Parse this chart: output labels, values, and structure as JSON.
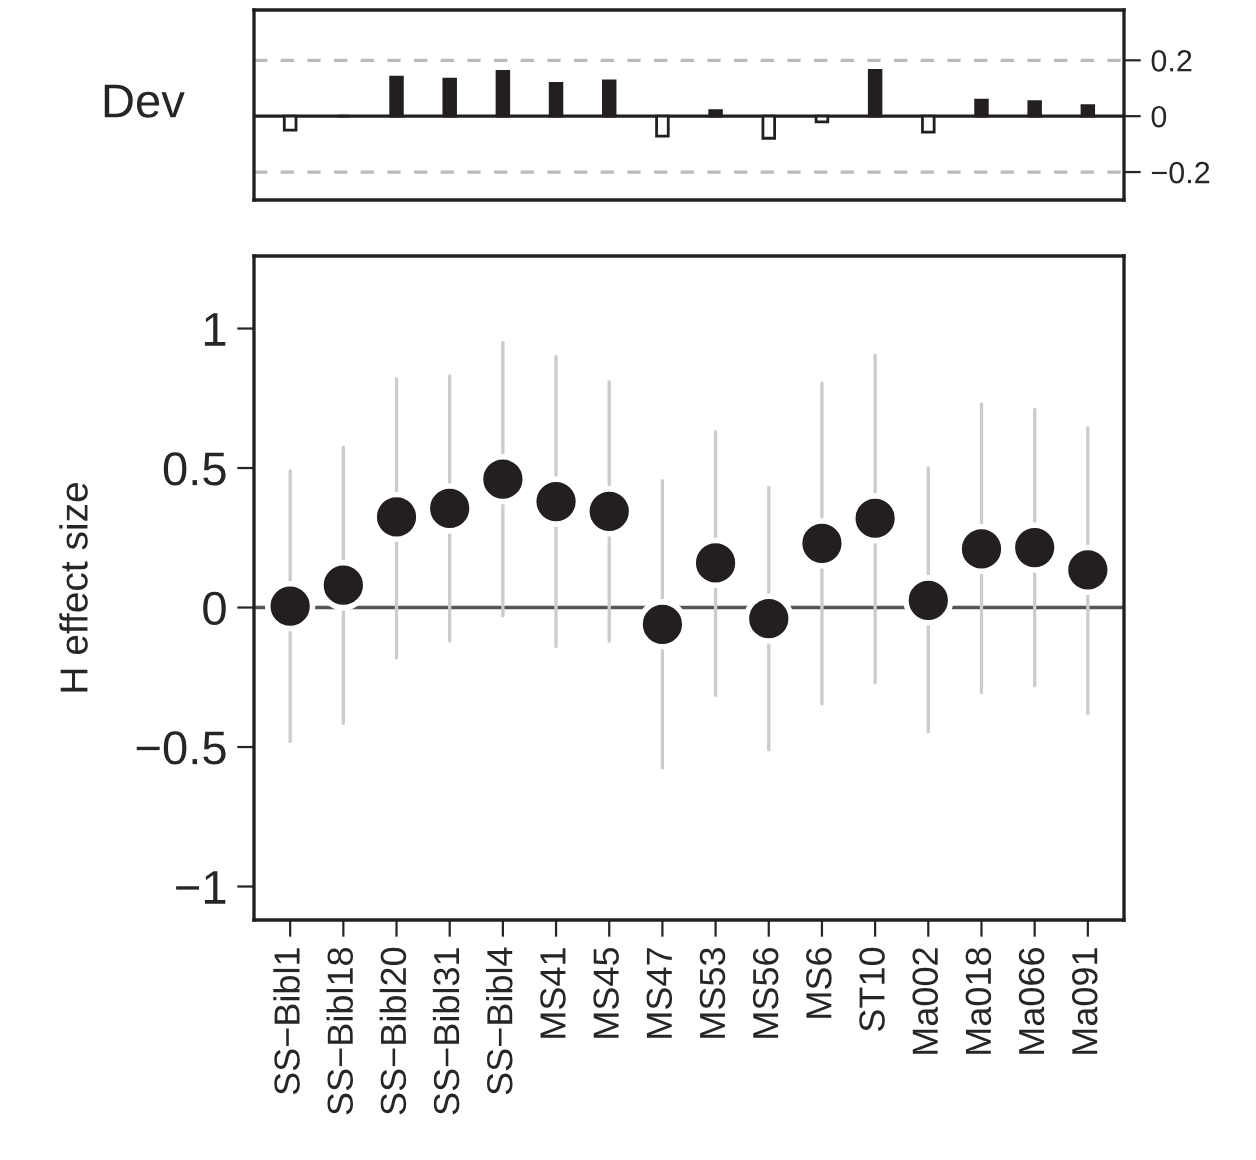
{
  "chart_data": [
    {
      "type": "bar",
      "ylabel": "Dev",
      "categories": [
        null,
        null,
        null,
        null,
        null,
        null,
        null,
        null,
        null,
        null,
        null,
        null,
        null,
        null,
        null,
        null
      ],
      "values": [
        -0.05,
        0,
        0.14,
        0.133,
        0.16,
        0.117,
        0.126,
        -0.071,
        0.02,
        -0.079,
        -0.02,
        0.164,
        -0.057,
        0.057,
        0.052,
        0.038
      ],
      "colors": [
        "#ffffff",
        "#231f20",
        "#231f20",
        "#231f20",
        "#231f20",
        "#231f20",
        "#231f20",
        "#ffffff",
        "#231f20",
        "#ffffff",
        "#ffffff",
        "#231f20",
        "#ffffff",
        "#231f20",
        "#231f20",
        "#231f20"
      ],
      "ylim": [
        -0.3,
        0.38
      ],
      "yticks": [
        0.2,
        0,
        {
          "value": -0.2,
          "label": "−0.2"
        }
      ],
      "tick_labels": "y",
      "ref_lines": [
        {
          "axis": "y",
          "value": 0.2,
          "color": "#bbbbbb",
          "line_style": "dashed"
        },
        {
          "axis": "y",
          "value": -0.2,
          "color": "#bbbbbb",
          "line_style": "dashed"
        },
        {
          "axis": "y",
          "value": 0,
          "color": "#231f20",
          "line_style": "solid"
        }
      ]
    },
    {
      "type": "scatter",
      "ylabel": "H effect size",
      "categories": [
        "SS−Bibl1",
        "SS−Bibl18",
        "SS−Bibl20",
        "SS−Bibl31",
        "SS−Bibl4",
        "MS41",
        "MS45",
        "MS47",
        "MS53",
        "MS56",
        "MS6",
        "ST10",
        "Ma002",
        "Ma018",
        "Ma066",
        "Ma091"
      ],
      "series": [
        {
          "color": "#231f20",
          "values": [
            0.005,
            0.08,
            0.325,
            0.355,
            0.46,
            0.38,
            0.345,
            -0.06,
            0.16,
            -0.04,
            0.23,
            0.32,
            0.026,
            0.21,
            0.215,
            0.135
          ],
          "errors": [
            [
              -0.48,
              0.49
            ],
            [
              -0.415,
              0.575
            ],
            [
              -0.18,
              0.82
            ],
            [
              -0.12,
              0.83
            ],
            [
              -0.03,
              0.95
            ],
            [
              -0.14,
              0.9
            ],
            [
              -0.12,
              0.81
            ],
            [
              -0.575,
              0.455
            ],
            [
              -0.315,
              0.63
            ],
            [
              -0.51,
              0.43
            ],
            [
              -0.345,
              0.805
            ],
            [
              -0.27,
              0.905
            ],
            [
              -0.445,
              0.5
            ],
            [
              -0.305,
              0.73
            ],
            [
              -0.28,
              0.71
            ],
            [
              -0.38,
              0.645
            ]
          ]
        }
      ],
      "marker": "circle",
      "ylim": [
        -1.12,
        1.26
      ],
      "yticks": [
        {
          "value": -1,
          "label": "−1"
        },
        {
          "value": -0.5,
          "label": "−0.5"
        },
        0,
        0.5,
        1
      ],
      "ref_lines": [
        {
          "axis": "y",
          "value": 0,
          "color": "#555555",
          "line_style": "solid"
        }
      ]
    }
  ]
}
